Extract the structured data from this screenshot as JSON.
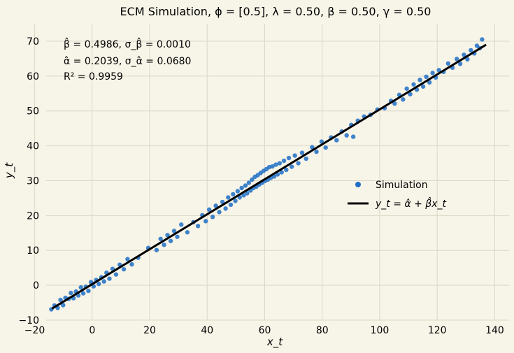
{
  "chart_data": {
    "type": "scatter",
    "title": "ECM Simulation, ϕ = [0.5], λ = 0.50, β = 0.50, γ = 0.50",
    "xlabel": "x_t",
    "ylabel": "y_t",
    "xlim": [
      -16,
      145
    ],
    "ylim": [
      -10,
      75
    ],
    "xticks": [
      -20,
      0,
      20,
      40,
      60,
      80,
      100,
      120,
      140
    ],
    "yticks": [
      -10,
      0,
      10,
      20,
      30,
      40,
      50,
      60,
      70
    ],
    "xtick_labels": [
      "−20",
      "0",
      "20",
      "40",
      "60",
      "80",
      "100",
      "120",
      "140"
    ],
    "ytick_labels": [
      "−10",
      "0",
      "10",
      "20",
      "30",
      "40",
      "50",
      "60",
      "70"
    ],
    "grid": true,
    "legend_position": "center-right",
    "series": [
      {
        "name": "Simulation",
        "kind": "scatter",
        "color": "#1f6fc6",
        "points": [
          [
            -14.2,
            -6.9
          ],
          [
            -13.1,
            -5.8
          ],
          [
            -12.0,
            -6.5
          ],
          [
            -11.0,
            -4.2
          ],
          [
            -10.1,
            -5.7
          ],
          [
            -9.3,
            -3.6
          ],
          [
            -8.2,
            -3.9
          ],
          [
            -7.4,
            -2.2
          ],
          [
            -6.5,
            -3.7
          ],
          [
            -5.6,
            -1.8
          ],
          [
            -4.8,
            -2.9
          ],
          [
            -3.9,
            -0.6
          ],
          [
            -3.1,
            -2.3
          ],
          [
            -2.2,
            -0.4
          ],
          [
            -1.3,
            -1.6
          ],
          [
            -0.4,
            0.9
          ],
          [
            0.5,
            -0.3
          ],
          [
            1.4,
            1.5
          ],
          [
            2.3,
            0.4
          ],
          [
            3.2,
            2.3
          ],
          [
            4.1,
            1.1
          ],
          [
            5.0,
            3.6
          ],
          [
            6.0,
            1.9
          ],
          [
            7.1,
            4.7
          ],
          [
            8.3,
            3.1
          ],
          [
            9.6,
            5.9
          ],
          [
            11.0,
            4.6
          ],
          [
            12.3,
            7.5
          ],
          [
            13.8,
            6.0
          ],
          [
            16.0,
            7.9
          ],
          [
            19.5,
            10.7
          ],
          [
            22.4,
            10.1
          ],
          [
            23.8,
            13.3
          ],
          [
            25.0,
            11.6
          ],
          [
            26.2,
            14.4
          ],
          [
            27.3,
            12.7
          ],
          [
            28.5,
            15.6
          ],
          [
            29.6,
            13.9
          ],
          [
            31.0,
            17.4
          ],
          [
            33.1,
            15.2
          ],
          [
            35.2,
            18.1
          ],
          [
            36.8,
            17.0
          ],
          [
            38.3,
            20.1
          ],
          [
            39.5,
            18.4
          ],
          [
            40.7,
            21.7
          ],
          [
            41.9,
            19.6
          ],
          [
            43.0,
            22.8
          ],
          [
            44.2,
            21.0
          ],
          [
            45.3,
            23.9
          ],
          [
            46.4,
            22.0
          ],
          [
            47.3,
            25.2
          ],
          [
            48.2,
            23.1
          ],
          [
            49.0,
            26.1
          ],
          [
            49.8,
            24.2
          ],
          [
            50.6,
            27.0
          ],
          [
            51.3,
            25.2
          ],
          [
            52.0,
            27.9
          ],
          [
            52.7,
            25.8
          ],
          [
            53.3,
            28.6
          ],
          [
            53.9,
            26.4
          ],
          [
            54.5,
            29.4
          ],
          [
            55.1,
            27.2
          ],
          [
            55.6,
            30.3
          ],
          [
            56.1,
            27.9
          ],
          [
            56.6,
            31.1
          ],
          [
            57.1,
            28.3
          ],
          [
            57.6,
            31.6
          ],
          [
            58.1,
            28.9
          ],
          [
            58.6,
            32.2
          ],
          [
            59.1,
            29.4
          ],
          [
            59.6,
            32.8
          ],
          [
            60.1,
            29.9
          ],
          [
            60.6,
            33.3
          ],
          [
            61.1,
            30.3
          ],
          [
            61.6,
            33.9
          ],
          [
            62.1,
            30.8
          ],
          [
            62.7,
            34.1
          ],
          [
            63.3,
            31.2
          ],
          [
            63.9,
            34.6
          ],
          [
            64.5,
            31.8
          ],
          [
            65.2,
            35.0
          ],
          [
            65.9,
            32.4
          ],
          [
            66.7,
            35.7
          ],
          [
            67.5,
            33.1
          ],
          [
            68.4,
            36.5
          ],
          [
            69.4,
            34.0
          ],
          [
            70.5,
            37.2
          ],
          [
            71.7,
            35.0
          ],
          [
            73.0,
            38.0
          ],
          [
            74.4,
            36.3
          ],
          [
            76.5,
            39.6
          ],
          [
            78.0,
            38.3
          ],
          [
            79.8,
            41.2
          ],
          [
            81.2,
            39.5
          ],
          [
            83.1,
            42.4
          ],
          [
            85.0,
            41.6
          ],
          [
            86.8,
            44.1
          ],
          [
            88.5,
            43.0
          ],
          [
            90.1,
            46.0
          ],
          [
            90.8,
            42.6
          ],
          [
            92.4,
            47.2
          ],
          [
            94.6,
            48.4
          ],
          [
            96.8,
            48.9
          ],
          [
            99.2,
            50.4
          ],
          [
            101.7,
            50.8
          ],
          [
            103.9,
            52.9
          ],
          [
            105.2,
            52.1
          ],
          [
            106.8,
            54.6
          ],
          [
            108.1,
            53.3
          ],
          [
            109.4,
            56.4
          ],
          [
            110.6,
            54.8
          ],
          [
            111.8,
            57.6
          ],
          [
            112.9,
            56.1
          ],
          [
            114.0,
            58.9
          ],
          [
            115.1,
            57.0
          ],
          [
            116.2,
            59.8
          ],
          [
            117.3,
            58.2
          ],
          [
            118.4,
            60.9
          ],
          [
            119.5,
            59.6
          ],
          [
            120.6,
            61.7
          ],
          [
            122.2,
            61.2
          ],
          [
            123.8,
            63.6
          ],
          [
            125.3,
            62.4
          ],
          [
            126.8,
            64.9
          ],
          [
            128.0,
            63.5
          ],
          [
            129.3,
            66.1
          ],
          [
            130.5,
            64.8
          ],
          [
            131.7,
            67.4
          ],
          [
            132.9,
            66.5
          ],
          [
            133.8,
            68.7
          ],
          [
            134.8,
            68.0
          ],
          [
            135.6,
            70.5
          ]
        ]
      },
      {
        "name": "y_t = α̂ + β̂x_t",
        "kind": "line",
        "color": "#000000",
        "x": [
          -14,
          137
        ],
        "y": [
          -6.7,
          69.0
        ]
      }
    ],
    "annotations": [
      "β̂ = 0.4986, σ_β̂ = 0.0010",
      "α̂ = 0.2039, σ_α̂ = 0.0680",
      "R² = 0.9959"
    ]
  }
}
